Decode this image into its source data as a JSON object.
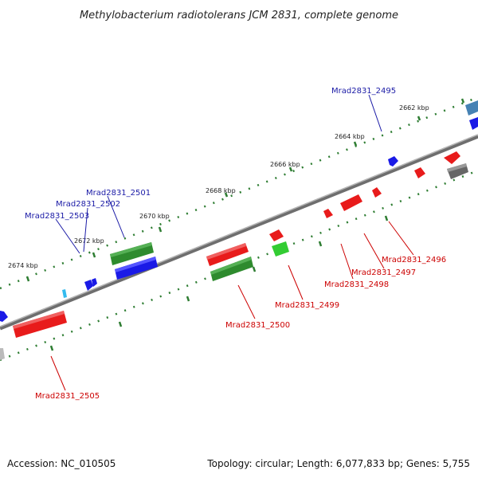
{
  "title": "Methylobacterium radiotolerans JCM 2831, complete genome",
  "footer": {
    "accession": "Accession: NC_010505",
    "summary": "Topology: circular; Length: 6,077,833 bp; Genes: 5,755"
  },
  "ticks": [
    "2662 kbp",
    "2664 kbp",
    "2666 kbp",
    "2668 kbp",
    "2670 kbp",
    "2672 kbp",
    "2674 kbp"
  ],
  "genes_top": [
    "Mrad2831_2495",
    "Mrad2831_2501",
    "Mrad2831_2502",
    "Mrad2831_2503"
  ],
  "genes_bottom": [
    "Mrad2831_2496",
    "Mrad2831_2497",
    "Mrad2831_2498",
    "Mrad2831_2499",
    "Mrad2831_2500",
    "Mrad2831_2505"
  ],
  "colors": {
    "forward_label": "#1a1aa6",
    "reverse_label": "#cc0000",
    "red": "#e81b1b",
    "blue": "#1a1ae6",
    "green": "#2e8b2e",
    "light_green": "#33cc33",
    "grey": "#666666",
    "steel": "#4682b4",
    "cyan": "#33bbee",
    "tick": "#2e7d32",
    "backbone": "#808080"
  }
}
